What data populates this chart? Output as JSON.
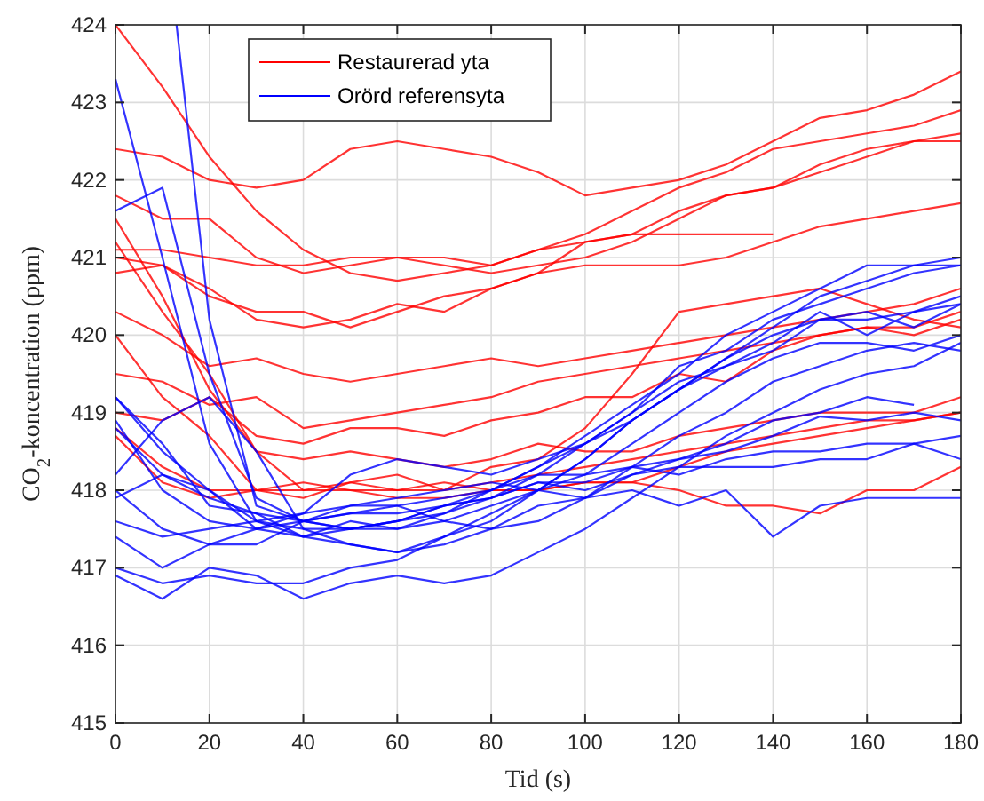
{
  "chart_data": {
    "type": "line",
    "xlabel": "Tid (s)",
    "ylabel": "CO$_{2}$-koncentration (ppm)",
    "x": [
      0,
      10,
      20,
      30,
      40,
      50,
      60,
      70,
      80,
      90,
      100,
      110,
      120,
      130,
      140,
      150,
      160,
      170,
      180
    ],
    "xlim": [
      0,
      180
    ],
    "xticks": [
      0,
      20,
      40,
      60,
      80,
      100,
      120,
      140,
      160,
      180
    ],
    "ylim": [
      415,
      424
    ],
    "yticks": [
      415,
      416,
      417,
      418,
      419,
      420,
      421,
      422,
      423,
      424
    ],
    "grid": true,
    "legend": "top left",
    "line_style": "solid",
    "marker": "none",
    "series": [
      {
        "name": "Restaurerad yta",
        "color": "#ff0000",
        "values": [
          422.4,
          422.3,
          422.0,
          421.9,
          422.0,
          422.4,
          422.5,
          422.4,
          422.3,
          422.1,
          421.8,
          421.9,
          422.0,
          422.2,
          422.5,
          422.8,
          422.9,
          423.1,
          423.4
        ]
      },
      {
        "color": "#ff0000",
        "values": [
          424.0,
          423.2,
          422.3,
          421.6,
          421.1,
          420.8,
          420.7,
          420.8,
          420.9,
          421.1,
          421.3,
          421.6,
          421.9,
          422.1,
          422.4,
          422.5,
          422.6,
          422.7,
          422.9
        ]
      },
      {
        "color": "#ff0000",
        "values": [
          421.8,
          421.5,
          421.5,
          421.0,
          420.8,
          420.9,
          421.0,
          421.0,
          420.9,
          421.1,
          421.2,
          421.3,
          421.6,
          421.8,
          421.9,
          422.2,
          422.4,
          422.5,
          422.6
        ]
      },
      {
        "color": "#ff0000",
        "values": [
          421.1,
          421.1,
          421.0,
          420.9,
          420.9,
          421.0,
          421.0,
          420.9,
          420.8,
          420.9,
          421.0,
          421.2,
          421.5,
          421.8,
          421.9,
          422.1,
          422.3,
          422.5,
          422.5
        ]
      },
      {
        "color": "#ff0000",
        "values": [
          421.0,
          420.9,
          420.5,
          420.3,
          420.3,
          420.1,
          420.3,
          420.5,
          420.6,
          420.8,
          420.9,
          420.9,
          420.9,
          421.0,
          421.2,
          421.4,
          421.5,
          421.6,
          421.7
        ]
      },
      {
        "color": "#ff0000",
        "values": [
          420.8,
          420.9,
          420.6,
          420.2,
          420.1,
          420.2,
          420.4,
          420.3,
          420.6,
          420.8,
          421.2,
          421.3,
          421.3,
          421.3,
          421.3,
          null,
          null,
          null,
          null
        ]
      },
      {
        "color": "#ff0000",
        "values": [
          420.3,
          420.0,
          419.6,
          419.7,
          419.5,
          419.4,
          419.5,
          419.6,
          419.7,
          419.6,
          419.7,
          419.8,
          419.9,
          420.0,
          420.1,
          420.2,
          420.3,
          420.4,
          420.6
        ]
      },
      {
        "color": "#ff0000",
        "values": [
          419.5,
          419.4,
          419.1,
          419.2,
          418.8,
          418.9,
          419.0,
          419.1,
          419.2,
          419.4,
          419.5,
          419.6,
          419.7,
          419.8,
          419.9,
          420.0,
          420.1,
          420.1,
          420.3
        ]
      },
      {
        "color": "#ff0000",
        "values": [
          419.0,
          418.9,
          419.2,
          418.7,
          418.6,
          418.8,
          418.8,
          418.7,
          418.9,
          419.0,
          419.2,
          419.2,
          419.5,
          419.4,
          419.8,
          420.0,
          420.1,
          420.0,
          420.2
        ]
      },
      {
        "color": "#ff0000",
        "values": [
          421.2,
          420.3,
          419.5,
          418.5,
          418.4,
          418.5,
          418.4,
          418.3,
          418.4,
          418.6,
          418.5,
          418.5,
          418.7,
          418.8,
          418.9,
          419.0,
          419.0,
          419.0,
          419.2
        ]
      },
      {
        "color": "#ff0000",
        "values": [
          418.7,
          418.1,
          417.9,
          418.0,
          418.1,
          418.0,
          418.0,
          418.0,
          418.1,
          418.2,
          418.3,
          418.4,
          418.5,
          418.6,
          418.7,
          418.8,
          418.9,
          418.9,
          419.0
        ]
      },
      {
        "color": "#ff0000",
        "values": [
          420.0,
          419.2,
          418.7,
          418.0,
          417.9,
          418.1,
          418.0,
          418.1,
          418.0,
          418.0,
          418.1,
          418.1,
          418.3,
          418.5,
          418.6,
          418.7,
          418.8,
          418.9,
          419.0
        ]
      },
      {
        "color": "#ff0000",
        "values": [
          421.5,
          420.5,
          419.3,
          418.5,
          418.0,
          418.1,
          418.2,
          418.0,
          418.3,
          418.4,
          418.8,
          419.5,
          420.3,
          420.4,
          420.5,
          420.6,
          420.4,
          420.2,
          420.1
        ]
      },
      {
        "color": "#ff0000",
        "values": [
          418.8,
          418.3,
          418.0,
          418.0,
          418.0,
          418.0,
          417.9,
          417.9,
          418.0,
          418.0,
          418.1,
          418.1,
          418.0,
          417.8,
          417.8,
          417.7,
          418.0,
          418.0,
          418.3
        ]
      },
      {
        "name": "Orörd referensyta",
        "color": "#0000ff",
        "x": [
          13,
          20,
          30,
          40,
          50,
          60,
          70,
          80,
          90,
          100,
          110,
          120,
          130,
          140,
          150,
          160,
          170,
          180
        ],
        "values": [
          424.0,
          420.2,
          417.8,
          417.6,
          417.5,
          417.5,
          417.6,
          417.8,
          418.0,
          418.4,
          418.9,
          419.3,
          419.7,
          420.1,
          420.5,
          420.7,
          420.9,
          420.9
        ]
      },
      {
        "color": "#0000ff",
        "values": [
          423.3,
          421.0,
          418.6,
          417.6,
          417.5,
          417.5,
          417.6,
          417.8,
          418.0,
          418.3,
          418.7,
          419.1,
          419.5,
          420.0,
          420.3,
          420.6,
          420.9,
          420.9,
          421.0
        ]
      },
      {
        "color": "#0000ff",
        "values": [
          421.6,
          421.9,
          419.5,
          417.9,
          417.6,
          417.7,
          417.7,
          417.8,
          417.9,
          418.2,
          418.6,
          419.0,
          419.6,
          419.8,
          420.2,
          420.4,
          420.6,
          420.8,
          420.9
        ]
      },
      {
        "color": "#0000ff",
        "values": [
          419.2,
          418.5,
          418.0,
          417.5,
          417.6,
          417.5,
          417.6,
          417.7,
          418.0,
          418.3,
          418.6,
          419.0,
          419.4,
          419.6,
          419.9,
          420.3,
          420.0,
          420.3,
          420.4
        ]
      },
      {
        "color": "#0000ff",
        "values": [
          418.8,
          418.2,
          417.9,
          417.7,
          417.4,
          417.3,
          417.2,
          417.4,
          417.7,
          418.0,
          418.2,
          418.6,
          419.0,
          419.4,
          419.7,
          419.9,
          419.9,
          419.8,
          420.0
        ]
      },
      {
        "color": "#0000ff",
        "values": [
          418.2,
          418.9,
          419.2,
          418.5,
          417.5,
          417.3,
          417.2,
          417.3,
          417.5,
          417.6,
          417.9,
          418.3,
          418.7,
          419.0,
          419.4,
          419.6,
          419.8,
          419.9,
          419.8
        ]
      },
      {
        "color": "#0000ff",
        "values": [
          417.9,
          418.2,
          418.0,
          417.6,
          417.7,
          418.2,
          418.4,
          418.3,
          418.2,
          418.4,
          418.6,
          418.9,
          419.3,
          419.6,
          419.8,
          420.2,
          420.2,
          420.3,
          420.5
        ]
      },
      {
        "color": "#0000ff",
        "values": [
          418.9,
          418.0,
          417.6,
          417.5,
          417.4,
          417.6,
          417.5,
          417.7,
          417.9,
          418.1,
          418.1,
          418.3,
          418.4,
          418.5,
          418.7,
          418.95,
          418.9,
          419.0,
          418.9
        ]
      },
      {
        "color": "#0000ff",
        "values": [
          419.2,
          418.6,
          417.8,
          417.7,
          417.6,
          417.7,
          417.8,
          417.9,
          418.0,
          418.2,
          418.2,
          418.3,
          418.2,
          418.4,
          418.5,
          418.5,
          418.6,
          418.6,
          418.7
        ]
      },
      {
        "color": "#0000ff",
        "values": [
          417.6,
          417.4,
          417.5,
          417.6,
          417.4,
          417.5,
          417.6,
          417.8,
          417.9,
          418.1,
          418.0,
          418.2,
          418.3,
          418.3,
          418.3,
          418.4,
          418.4,
          418.6,
          418.4
        ]
      },
      {
        "color": "#0000ff",
        "values": [
          417.0,
          416.8,
          416.9,
          416.8,
          416.8,
          417.0,
          417.1,
          417.4,
          417.6,
          418.0,
          418.4,
          418.9,
          419.3,
          419.7,
          420.0,
          420.2,
          420.3,
          420.1,
          420.4
        ]
      },
      {
        "color": "#0000ff",
        "values": [
          416.9,
          416.6,
          417.0,
          416.9,
          416.6,
          416.8,
          416.9,
          416.8,
          416.9,
          417.2,
          417.5,
          417.9,
          418.3,
          418.7,
          419.0,
          419.3,
          419.5,
          419.6,
          419.9
        ]
      },
      {
        "color": "#0000ff",
        "values": [
          417.4,
          417.0,
          417.3,
          417.5,
          417.7,
          417.8,
          417.8,
          417.6,
          417.5,
          417.8,
          417.9,
          418.0,
          417.8,
          418.0,
          417.4,
          417.8,
          417.9,
          417.9,
          417.9
        ]
      },
      {
        "color": "#0000ff",
        "values": [
          418.0,
          417.5,
          417.3,
          417.3,
          417.6,
          417.8,
          417.9,
          418.0,
          418.1,
          418.0,
          417.9,
          418.2,
          418.4,
          418.6,
          418.9,
          419.0,
          419.2,
          419.1,
          null
        ]
      }
    ]
  }
}
